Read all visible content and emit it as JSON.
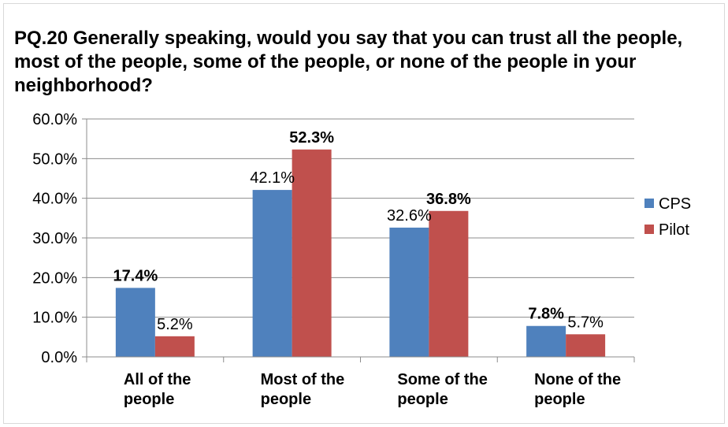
{
  "colors": {
    "CPS": "#4f81bd",
    "Pilot": "#c0504d",
    "grid": "#8c8c8c",
    "axis": "#000000"
  },
  "chart_data": {
    "type": "bar",
    "title": "PQ.20 Generally speaking, would you say that you can trust all the people, most of the people, some of the people, or none of the people in your neighborhood?",
    "categories": [
      [
        "All of the",
        "people"
      ],
      [
        "Most of the",
        "people"
      ],
      [
        "Some of the",
        "people"
      ],
      [
        "None of the",
        "people"
      ]
    ],
    "series": [
      {
        "name": "CPS",
        "values": [
          17.4,
          42.1,
          32.6,
          7.8
        ],
        "labels": [
          "17.4%",
          "42.1%",
          "32.6%",
          "7.8%"
        ],
        "label_bold": [
          true,
          false,
          false,
          true
        ]
      },
      {
        "name": "Pilot",
        "values": [
          5.2,
          52.3,
          36.8,
          5.7
        ],
        "labels": [
          "5.2%",
          "52.3%",
          "36.8%",
          "5.7%"
        ],
        "label_bold": [
          false,
          true,
          true,
          false
        ]
      }
    ],
    "yticks": [
      "0.0%",
      "10.0%",
      "20.0%",
      "30.0%",
      "40.0%",
      "50.0%",
      "60.0%"
    ],
    "ylim": [
      0,
      60
    ],
    "grid": true,
    "legend": "right"
  }
}
